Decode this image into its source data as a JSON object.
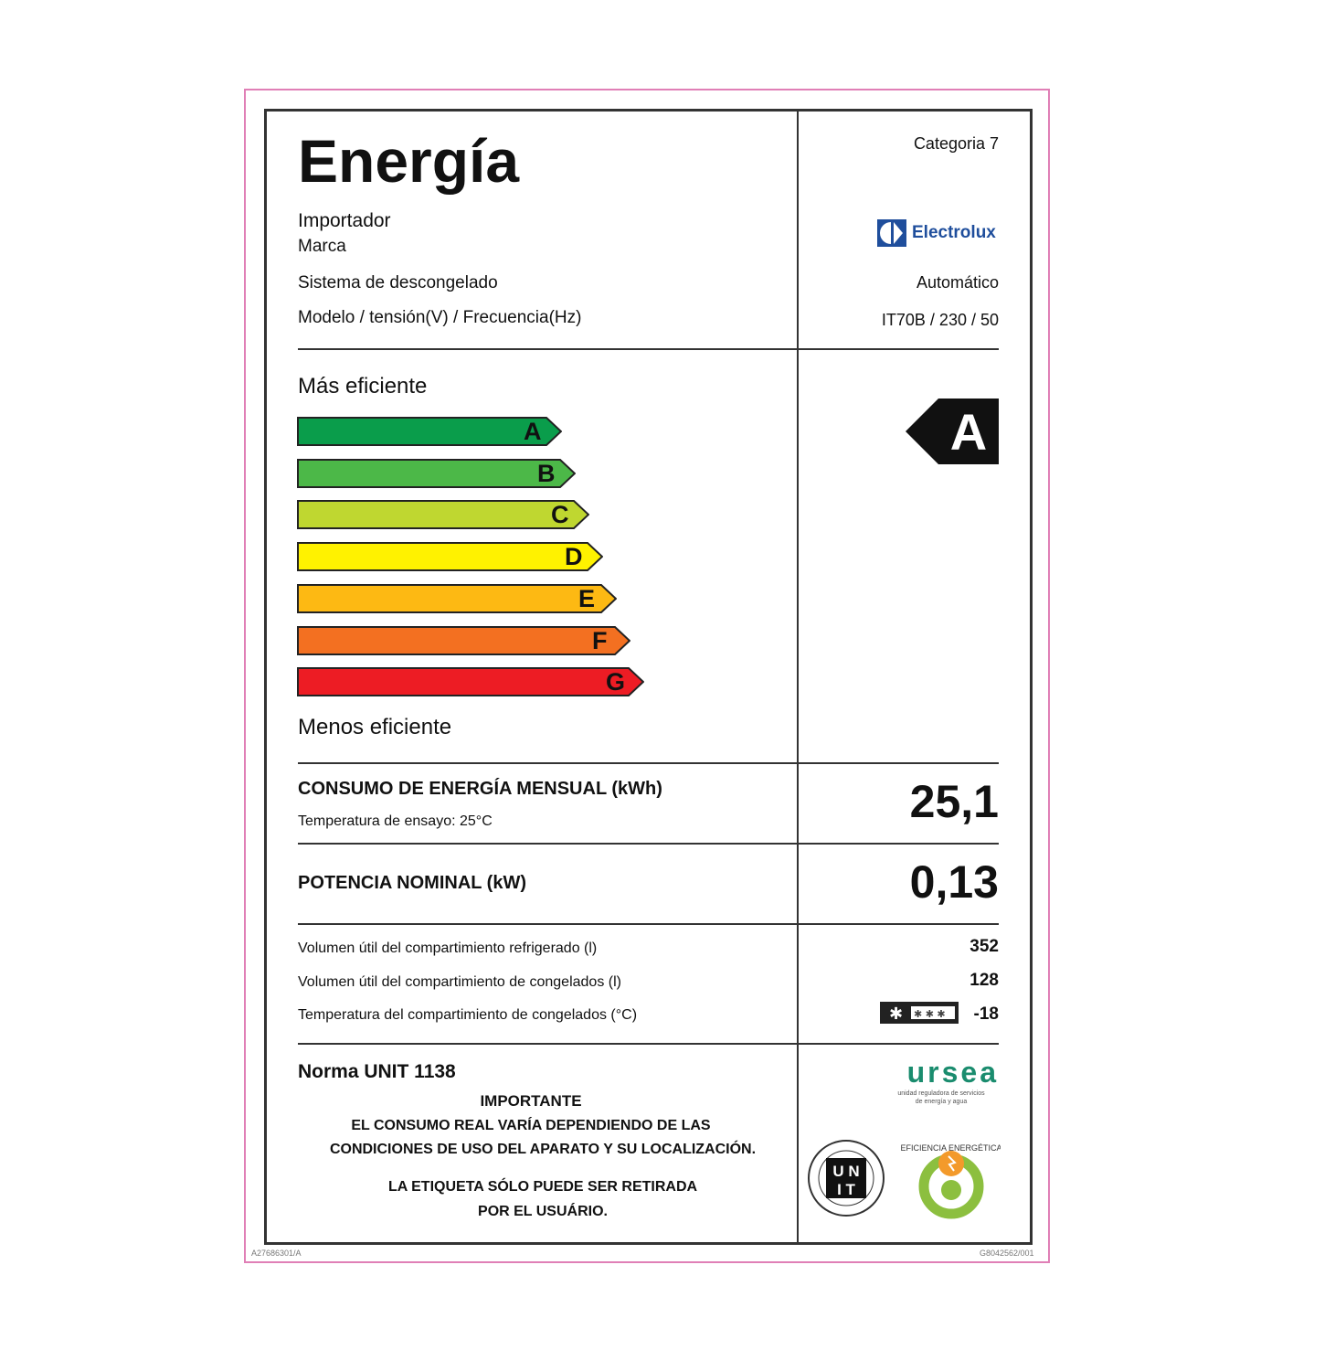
{
  "title": "Energía",
  "category": "Categoria 7",
  "labels": {
    "importer": "Importador",
    "brand": "Marca",
    "defrost": "Sistema de descongelado",
    "model": "Modelo / tensión(V) / Frecuencia(Hz)"
  },
  "values": {
    "brand_logo": "Electrolux",
    "defrost": "Automático",
    "model": "IT70B / 230 / 50"
  },
  "scale": {
    "top_label": "Más eficiente",
    "bottom_label": "Menos eficiente",
    "classes": [
      {
        "letter": "A",
        "color": "#0a9d4b"
      },
      {
        "letter": "B",
        "color": "#4cb848"
      },
      {
        "letter": "C",
        "color": "#bfd730"
      },
      {
        "letter": "D",
        "color": "#fff200"
      },
      {
        "letter": "E",
        "color": "#fdb913"
      },
      {
        "letter": "F",
        "color": "#f37021"
      },
      {
        "letter": "G",
        "color": "#ed1c24"
      }
    ],
    "rating": "A"
  },
  "consumption": {
    "label": "CONSUMO DE ENERGÍA MENSUAL (kWh)",
    "sublabel": "Temperatura de ensayo: 25°C",
    "value": "25,1"
  },
  "power": {
    "label": "POTENCIA NOMINAL (kW)",
    "value": "0,13"
  },
  "specs": [
    {
      "label": "Volumen útil del compartimiento refrigerado (l)",
      "value": "352"
    },
    {
      "label": "Volumen útil del compartimiento de congelados (l)",
      "value": "128"
    },
    {
      "label": "Temperatura del compartimiento de congelados (°C)",
      "value": "-18",
      "icon": "freezer-star-rating-icon"
    }
  ],
  "norm": "Norma UNIT 1138",
  "important": {
    "heading": "IMPORTANTE",
    "line1": "EL CONSUMO REAL VARÍA DEPENDIENDO DE LAS",
    "line2": "CONDICIONES DE USO DEL APARATO Y SU LOCALIZACIÓN.",
    "line3": "LA ETIQUETA  SÓLO PUEDE SER RETIRADA",
    "line4": "POR EL USUÁRIO."
  },
  "logos": {
    "ursea": "ursea",
    "ursea_sub1": "unidad reguladora de servicios",
    "ursea_sub2": "de energía y agua",
    "unit_seal": "UNIT",
    "efficiency_seal": "EFICIENCIA ENERGÉTICA"
  },
  "codes": {
    "left": "A27686301/A",
    "right": "G8042562/001"
  },
  "colors": {
    "frame": "#e07fb6",
    "ursea": "#1a8c6e"
  }
}
